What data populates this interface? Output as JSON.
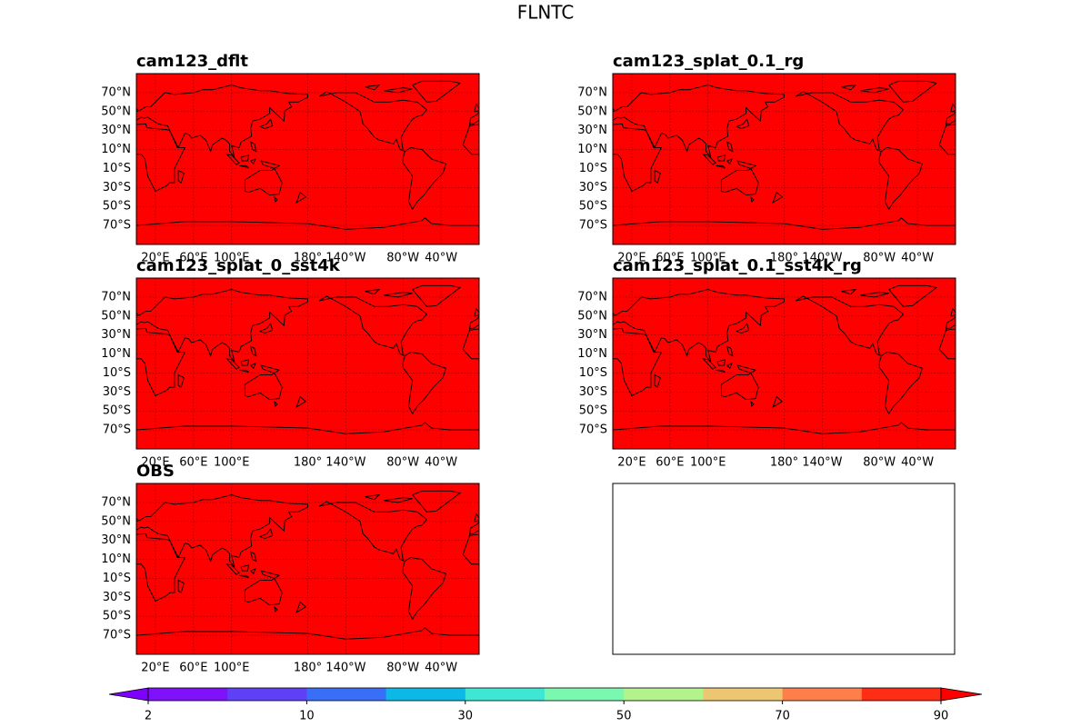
{
  "title": "FLNTC",
  "map_fill": "#ff0000",
  "panels": [
    {
      "title": "cam123_dflt"
    },
    {
      "title": "cam123_splat_0.1_rg"
    },
    {
      "title": "cam123_splat_0_sst4k"
    },
    {
      "title": "cam123_splat_0.1_sst4k_rg"
    },
    {
      "title": "OBS"
    }
  ],
  "lat_ticks": [
    {
      "value": 70,
      "label": "70°N"
    },
    {
      "value": 50,
      "label": "50°N"
    },
    {
      "value": 30,
      "label": "30°N"
    },
    {
      "value": 10,
      "label": "10°N"
    },
    {
      "value": -10,
      "label": "10°S"
    },
    {
      "value": -30,
      "label": "30°S"
    },
    {
      "value": -50,
      "label": "50°S"
    },
    {
      "value": -70,
      "label": "70°S"
    }
  ],
  "lon_ticks": [
    {
      "value": 20,
      "label": "20°E"
    },
    {
      "value": 60,
      "label": "60°E"
    },
    {
      "value": 100,
      "label": "100°E"
    },
    {
      "value": 180,
      "label": "180°"
    },
    {
      "value": 220,
      "label": "140°W"
    },
    {
      "value": 280,
      "label": "80°W"
    },
    {
      "value": 320,
      "label": "40°W"
    }
  ],
  "colorbar": {
    "levels": [
      2,
      6,
      10,
      20,
      30,
      40,
      50,
      60,
      70,
      80,
      90
    ],
    "ticks": [
      2,
      10,
      30,
      50,
      70,
      90
    ],
    "colors": [
      "#8012fb",
      "#5f40f7",
      "#386ff6",
      "#0db7e6",
      "#3ee6d4",
      "#7bf8b0",
      "#b2f38c",
      "#ecc670",
      "#ff7f4a",
      "#ff2d16"
    ],
    "under_color": "#7f00ff",
    "over_color": "#ff0000"
  }
}
